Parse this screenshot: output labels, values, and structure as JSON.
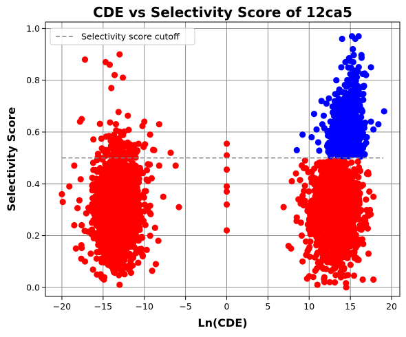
{
  "chart_data": {
    "type": "scatter",
    "title": "CDE vs Selectivity Score of 12ca5",
    "xlabel": "Ln(CDE)",
    "ylabel": "Selectivity Score",
    "xlim": [
      -22,
      21
    ],
    "ylim": [
      -0.035,
      1.025
    ],
    "xticks": [
      -20,
      -15,
      -10,
      -5,
      0,
      5,
      10,
      15,
      20
    ],
    "xtick_labels": [
      "−20",
      "−15",
      "−10",
      "−5",
      "0",
      "5",
      "10",
      "15",
      "20"
    ],
    "yticks": [
      0.0,
      0.2,
      0.4,
      0.6,
      0.8,
      1.0
    ],
    "ytick_labels": [
      "0.0",
      "0.2",
      "0.4",
      "0.6",
      "0.8",
      "1.0"
    ],
    "grid": true,
    "legend_position": "top-left",
    "cutoff_line": {
      "label": "Selectivity score cutoff",
      "y": 0.5,
      "x_range": [
        -20,
        19
      ],
      "style": "dashed",
      "color": "#808080"
    },
    "colors": {
      "below_cutoff": "#ff0000",
      "above_cutoff": "#0000ff",
      "grid": "#808080"
    },
    "series": [
      {
        "color": "#ff0000",
        "points": [
          [
            -17.2,
            0.88
          ],
          [
            -14.7,
            0.87
          ],
          [
            -13.0,
            0.9
          ],
          [
            -14.2,
            0.86
          ],
          [
            -13.6,
            0.82
          ],
          [
            -12.6,
            0.81
          ],
          [
            -14.0,
            0.77
          ],
          [
            -17.8,
            0.64
          ],
          [
            -17.6,
            0.65
          ],
          [
            -8.2,
            0.63
          ],
          [
            -10.0,
            0.64
          ],
          [
            -9.3,
            0.59
          ],
          [
            -8.8,
            0.53
          ],
          [
            -6.8,
            0.52
          ],
          [
            -8.2,
            0.47
          ],
          [
            -6.2,
            0.47
          ],
          [
            -7.7,
            0.35
          ],
          [
            -5.8,
            0.31
          ],
          [
            -8.7,
            0.23
          ],
          [
            -8.3,
            0.18
          ],
          [
            -8.6,
            0.09
          ],
          [
            -10.2,
            0.12
          ],
          [
            -14.9,
            0.03
          ],
          [
            -13.0,
            0.01
          ],
          [
            -19.9,
            0.33
          ],
          [
            -20.0,
            0.36
          ],
          [
            -18.5,
            0.47
          ],
          [
            -19.1,
            0.39
          ],
          [
            -18.5,
            0.24
          ],
          [
            -18.3,
            0.15
          ],
          [
            -17.6,
            0.24
          ],
          [
            -17.2,
            0.1
          ],
          [
            -16.5,
            0.13
          ],
          [
            -14.6,
            0.15
          ],
          [
            -11.8,
            0.07
          ],
          [
            0.0,
            0.555
          ],
          [
            0.0,
            0.51
          ],
          [
            0.0,
            0.455
          ],
          [
            0.0,
            0.39
          ],
          [
            0.0,
            0.37
          ],
          [
            0.0,
            0.32
          ],
          [
            0.0,
            0.22
          ],
          [
            6.9,
            0.31
          ],
          [
            7.5,
            0.16
          ],
          [
            7.8,
            0.15
          ],
          [
            7.9,
            0.41
          ],
          [
            8.4,
            0.44
          ],
          [
            8.5,
            0.27
          ],
          [
            8.7,
            0.34
          ],
          [
            9.0,
            0.25
          ],
          [
            9.1,
            0.2
          ],
          [
            9.2,
            0.1
          ],
          [
            9.5,
            0.49
          ],
          [
            9.6,
            0.46
          ],
          [
            10.0,
            0.3
          ],
          [
            10.5,
            0.04
          ],
          [
            11.0,
            0.01
          ],
          [
            16.5,
            0.03
          ],
          [
            17.2,
            0.13
          ],
          [
            17.3,
            0.37
          ],
          [
            17.8,
            0.35
          ],
          [
            17.8,
            0.03
          ],
          [
            16.2,
            0.45
          ],
          [
            16.8,
            0.26
          ],
          [
            14.5,
            0.0
          ],
          [
            12.5,
            0.02
          ]
        ],
        "clusters": [
          {
            "cx": -13.2,
            "sx": 1.5,
            "cy": 0.32,
            "sy": 0.12,
            "n": 1300,
            "xmin": -19.5,
            "xmax": -8.0,
            "ymin": 0.03,
            "ymax": 0.72
          },
          {
            "cx": 13.2,
            "sx": 1.5,
            "cy": 0.3,
            "sy": 0.11,
            "n": 1300,
            "xmin": 8.0,
            "xmax": 17.5,
            "ymin": 0.01,
            "ymax": 0.495
          }
        ]
      },
      {
        "color": "#0000ff",
        "points": [
          [
            15.2,
            0.97
          ],
          [
            15.6,
            0.96
          ],
          [
            16.0,
            0.97
          ],
          [
            14.0,
            0.96
          ],
          [
            15.3,
            0.92
          ],
          [
            14.9,
            0.88
          ],
          [
            18.4,
            0.63
          ],
          [
            19.1,
            0.68
          ],
          [
            17.5,
            0.64
          ],
          [
            17.8,
            0.61
          ],
          [
            17.5,
            0.85
          ],
          [
            16.9,
            0.82
          ],
          [
            8.5,
            0.53
          ],
          [
            9.2,
            0.59
          ],
          [
            10.3,
            0.58
          ],
          [
            10.9,
            0.61
          ],
          [
            11.1,
            0.56
          ],
          [
            10.6,
            0.67
          ],
          [
            11.5,
            0.72
          ],
          [
            12.1,
            0.71
          ],
          [
            12.4,
            0.73
          ],
          [
            13.3,
            0.8
          ],
          [
            13.9,
            0.85
          ],
          [
            14.4,
            0.87
          ],
          [
            16.2,
            0.52
          ],
          [
            16.7,
            0.55
          ],
          [
            17.0,
            0.58
          ]
        ],
        "clusters": [
          {
            "cx": 14.4,
            "sx": 1.1,
            "cy": 0.58,
            "sy": 0.07,
            "n": 420,
            "xmin": 10.0,
            "xmax": 17.0,
            "ymin": 0.505,
            "ymax": 0.8
          },
          {
            "cx": 15.2,
            "sx": 0.7,
            "cy": 0.7,
            "sy": 0.09,
            "n": 150,
            "xmin": 13.5,
            "xmax": 16.8,
            "ymin": 0.55,
            "ymax": 0.92
          }
        ]
      }
    ]
  }
}
